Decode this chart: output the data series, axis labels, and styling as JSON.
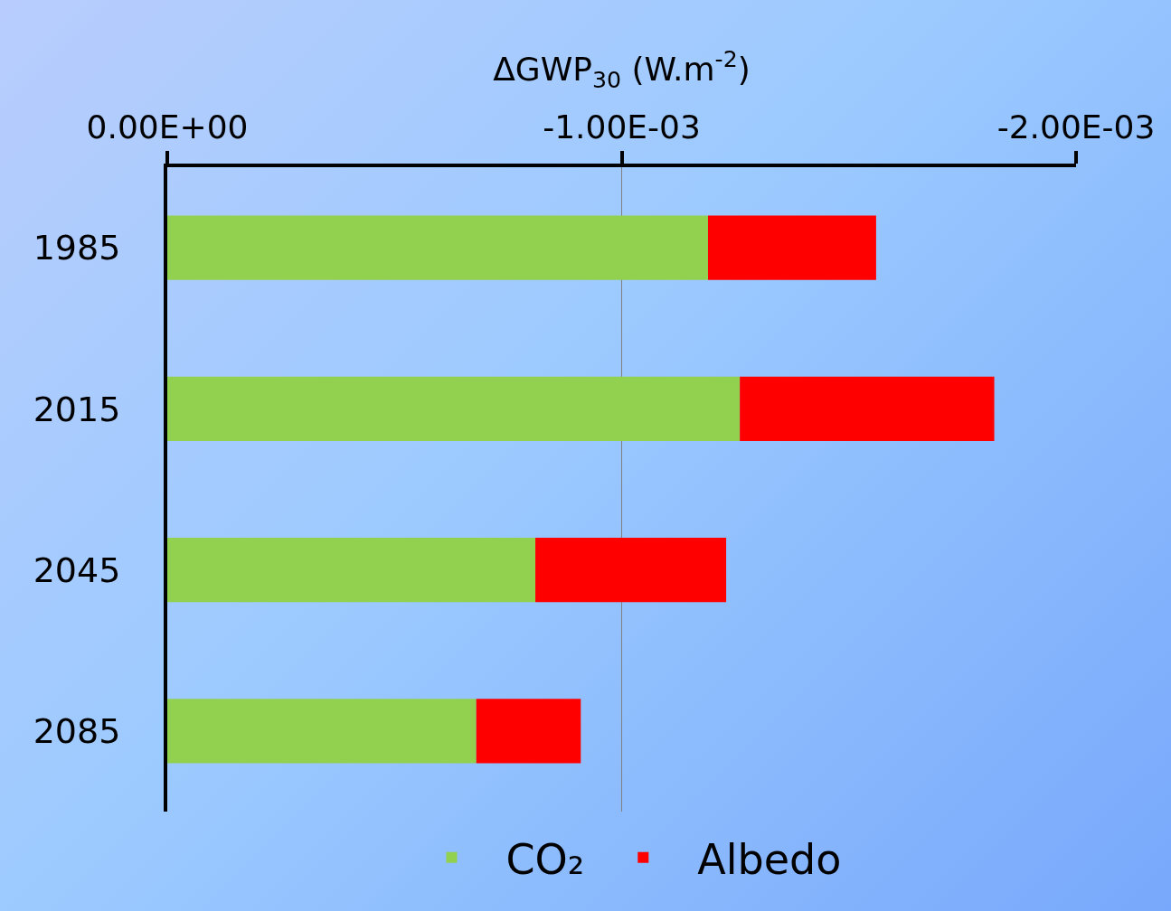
{
  "chart_data": {
    "type": "bar",
    "orientation": "horizontal",
    "stacked": true,
    "xlabel": "ΔGWP$_{30}$ (W.m$^{-2}$)",
    "categories": [
      "1985",
      "2015",
      "2045",
      "2085"
    ],
    "series": [
      {
        "name": "CO₂",
        "color": "#92d050",
        "values": [
          -0.00119,
          -0.00126,
          -0.00081,
          -0.00068
        ]
      },
      {
        "name": "Albedo",
        "color": "#ff0000",
        "values": [
          -0.00037,
          -0.00056,
          -0.00042,
          -0.00023
        ]
      }
    ],
    "xlim": [
      0,
      -0.002
    ],
    "xticks": [
      {
        "value": 0,
        "label": "0.00E+00"
      },
      {
        "value": -0.001,
        "label": "-1.00E-03"
      },
      {
        "value": -0.002,
        "label": "-2.00E-03"
      }
    ],
    "grid": "x",
    "legend": "bottom"
  }
}
